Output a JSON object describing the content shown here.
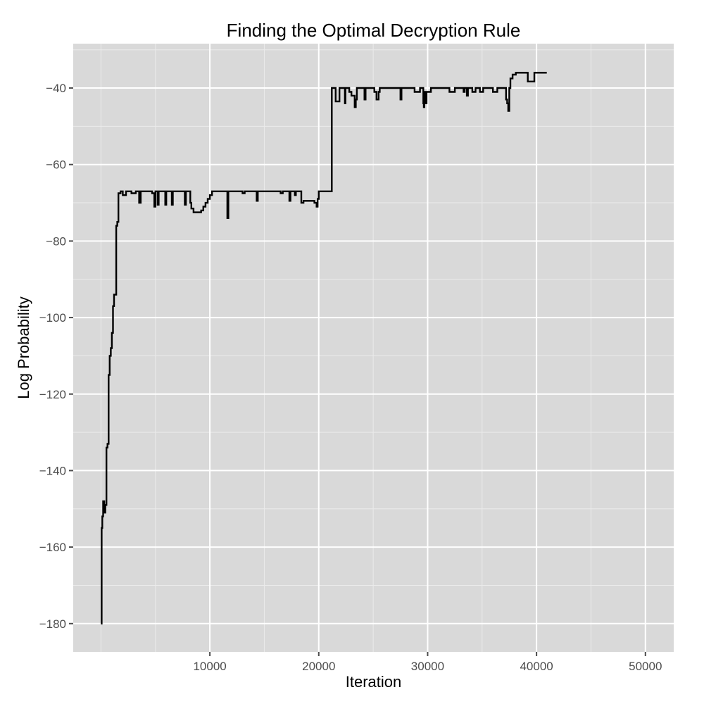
{
  "chart_data": {
    "type": "line",
    "title": "Finding the Optimal Decryption Rule",
    "xlabel": "Iteration",
    "ylabel": "Log Probability",
    "xlim": [
      -2550,
      52600
    ],
    "ylim": [
      -187.4,
      -28.4
    ],
    "x_ticks": [
      10000,
      20000,
      30000,
      40000,
      50000
    ],
    "x_tick_labels": [
      "10000",
      "20000",
      "30000",
      "40000",
      "50000"
    ],
    "y_ticks": [
      -40,
      -60,
      -80,
      -100,
      -120,
      -140,
      -160,
      -180
    ],
    "y_tick_labels": [
      "-40",
      "-60",
      "-80",
      "-100",
      "-120",
      "-140",
      "-160",
      "-180"
    ],
    "x_minor": [
      0,
      5000,
      15000,
      25000,
      35000,
      45000
    ],
    "y_minor": [
      -30,
      -50,
      -70,
      -90,
      -110,
      -130,
      -150,
      -170
    ],
    "grid": true,
    "legend": null,
    "step": true,
    "series": [
      {
        "name": "Log Probability",
        "color": "#000000",
        "points": [
          [
            0,
            -180
          ],
          [
            60,
            -155
          ],
          [
            120,
            -152
          ],
          [
            200,
            -148
          ],
          [
            300,
            -151
          ],
          [
            400,
            -149
          ],
          [
            500,
            -134
          ],
          [
            600,
            -133
          ],
          [
            700,
            -115
          ],
          [
            800,
            -110
          ],
          [
            900,
            -108
          ],
          [
            1000,
            -104
          ],
          [
            1100,
            -97
          ],
          [
            1200,
            -94
          ],
          [
            1300,
            -94
          ],
          [
            1400,
            -76
          ],
          [
            1500,
            -75
          ],
          [
            1600,
            -67.5
          ],
          [
            1800,
            -67
          ],
          [
            2000,
            -68
          ],
          [
            2300,
            -67
          ],
          [
            2800,
            -67.5
          ],
          [
            3200,
            -67
          ],
          [
            3500,
            -70
          ],
          [
            3650,
            -67
          ],
          [
            4200,
            -67
          ],
          [
            4700,
            -67.5
          ],
          [
            4900,
            -71
          ],
          [
            5000,
            -67
          ],
          [
            5200,
            -70.5
          ],
          [
            5300,
            -67
          ],
          [
            5500,
            -67
          ],
          [
            5700,
            -67
          ],
          [
            5900,
            -70.5
          ],
          [
            6000,
            -67
          ],
          [
            6200,
            -67
          ],
          [
            6500,
            -70.5
          ],
          [
            6600,
            -67
          ],
          [
            6800,
            -67
          ],
          [
            7100,
            -67
          ],
          [
            7500,
            -67
          ],
          [
            7700,
            -70.5
          ],
          [
            7800,
            -67
          ],
          [
            8000,
            -67
          ],
          [
            8200,
            -70
          ],
          [
            8300,
            -71.5
          ],
          [
            8500,
            -72.5
          ],
          [
            8900,
            -72.5
          ],
          [
            9200,
            -72
          ],
          [
            9400,
            -71
          ],
          [
            9600,
            -70
          ],
          [
            9800,
            -69
          ],
          [
            10000,
            -68
          ],
          [
            10200,
            -67
          ],
          [
            10600,
            -67
          ],
          [
            11000,
            -67
          ],
          [
            11500,
            -67
          ],
          [
            11600,
            -74
          ],
          [
            11700,
            -67
          ],
          [
            12200,
            -67
          ],
          [
            12500,
            -67
          ],
          [
            12800,
            -67
          ],
          [
            13000,
            -67.5
          ],
          [
            13200,
            -67
          ],
          [
            13600,
            -67
          ],
          [
            14000,
            -67
          ],
          [
            14300,
            -69.5
          ],
          [
            14400,
            -67
          ],
          [
            14800,
            -67
          ],
          [
            15200,
            -67
          ],
          [
            15700,
            -67
          ],
          [
            16200,
            -67
          ],
          [
            16500,
            -67.5
          ],
          [
            16700,
            -67
          ],
          [
            17100,
            -67
          ],
          [
            17300,
            -69.5
          ],
          [
            17400,
            -67
          ],
          [
            17600,
            -67
          ],
          [
            17800,
            -68
          ],
          [
            17900,
            -67
          ],
          [
            18300,
            -67
          ],
          [
            18400,
            -70
          ],
          [
            18600,
            -69.5
          ],
          [
            19200,
            -69.5
          ],
          [
            19600,
            -70
          ],
          [
            19800,
            -71
          ],
          [
            19900,
            -69
          ],
          [
            20000,
            -67
          ],
          [
            20400,
            -67
          ],
          [
            20800,
            -67
          ],
          [
            21200,
            -40
          ],
          [
            21400,
            -40
          ],
          [
            21550,
            -43.5
          ],
          [
            21800,
            -43.5
          ],
          [
            21900,
            -40
          ],
          [
            22200,
            -40
          ],
          [
            22400,
            -44
          ],
          [
            22450,
            -40
          ],
          [
            22600,
            -40
          ],
          [
            22800,
            -41
          ],
          [
            23000,
            -42
          ],
          [
            23200,
            -42
          ],
          [
            23300,
            -45
          ],
          [
            23400,
            -43
          ],
          [
            23500,
            -40
          ],
          [
            23900,
            -40
          ],
          [
            24200,
            -43
          ],
          [
            24300,
            -40
          ],
          [
            24700,
            -40
          ],
          [
            25100,
            -41
          ],
          [
            25300,
            -43
          ],
          [
            25500,
            -41
          ],
          [
            25600,
            -40
          ],
          [
            25800,
            -40
          ],
          [
            26400,
            -40
          ],
          [
            26800,
            -40
          ],
          [
            27300,
            -40
          ],
          [
            27500,
            -43
          ],
          [
            27600,
            -40
          ],
          [
            28000,
            -40
          ],
          [
            28600,
            -40
          ],
          [
            28800,
            -41
          ],
          [
            29100,
            -41
          ],
          [
            29300,
            -40
          ],
          [
            29500,
            -40
          ],
          [
            29600,
            -44
          ],
          [
            29650,
            -45
          ],
          [
            29700,
            -41
          ],
          [
            29800,
            -44
          ],
          [
            29900,
            -41
          ],
          [
            30100,
            -41
          ],
          [
            30300,
            -40
          ],
          [
            30800,
            -40
          ],
          [
            31300,
            -40
          ],
          [
            31800,
            -40
          ],
          [
            32000,
            -41
          ],
          [
            32300,
            -41
          ],
          [
            32500,
            -40
          ],
          [
            33000,
            -40
          ],
          [
            33300,
            -41
          ],
          [
            33400,
            -40
          ],
          [
            33600,
            -42
          ],
          [
            33700,
            -40
          ],
          [
            33900,
            -40
          ],
          [
            34100,
            -41
          ],
          [
            34300,
            -41
          ],
          [
            34400,
            -40
          ],
          [
            34600,
            -40
          ],
          [
            34800,
            -41
          ],
          [
            35000,
            -41
          ],
          [
            35100,
            -40
          ],
          [
            35600,
            -40
          ],
          [
            35800,
            -40
          ],
          [
            36000,
            -41
          ],
          [
            36300,
            -41
          ],
          [
            36400,
            -40
          ],
          [
            36800,
            -40
          ],
          [
            37000,
            -40
          ],
          [
            37200,
            -43
          ],
          [
            37300,
            -44
          ],
          [
            37400,
            -46
          ],
          [
            37500,
            -40
          ],
          [
            37600,
            -37.5
          ],
          [
            37800,
            -36.5
          ],
          [
            38100,
            -36
          ],
          [
            38500,
            -36
          ],
          [
            38800,
            -36
          ],
          [
            39200,
            -38.3
          ],
          [
            39600,
            -38.3
          ],
          [
            39800,
            -36
          ],
          [
            40200,
            -36
          ],
          [
            40940,
            -36
          ]
        ]
      }
    ]
  },
  "texts": {
    "title": "Finding the Optimal Decryption Rule",
    "xlabel": "Iteration",
    "ylabel": "Log Probability"
  },
  "colors": {
    "panel_bg": "#d9d9d9",
    "grid_major": "#ffffff",
    "grid_minor": "#ebebeb",
    "line": "#000000",
    "tick_text": "#4d4d4d",
    "tick_mark": "#4d4d4d"
  }
}
